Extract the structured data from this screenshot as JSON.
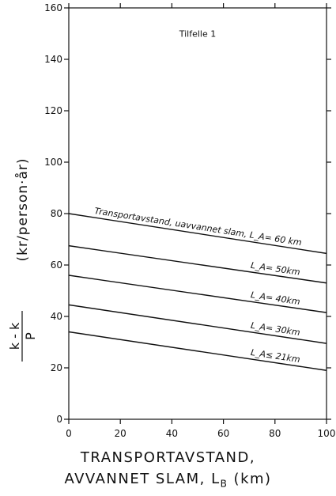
{
  "chart_data": {
    "type": "line",
    "title": "",
    "annotation_case": "Tilfelle 1",
    "x": [
      0,
      100
    ],
    "series": [
      {
        "name": "L_A = 60 km",
        "values": [
          80,
          64.5
        ],
        "label": "Transportavstand, uavvannet slam,  L_A= 60 km",
        "label_at": 50
      },
      {
        "name": "L_A = 50 km",
        "values": [
          67.5,
          53
        ],
        "label": "L_A= 50km",
        "label_at": 80
      },
      {
        "name": "L_A = 40 km",
        "values": [
          56,
          41.5
        ],
        "label": "L_A= 40km",
        "label_at": 80
      },
      {
        "name": "L_A = 30 km",
        "values": [
          44.5,
          29.5
        ],
        "label": "L_A= 30km",
        "label_at": 80
      },
      {
        "name": "L_A ≤ 21 km",
        "values": [
          34,
          19
        ],
        "label": "L_A≤ 21km",
        "label_at": 80
      }
    ],
    "xlim": [
      0,
      100
    ],
    "ylim": [
      0,
      160
    ],
    "xticks": [
      0,
      20,
      40,
      60,
      80,
      100
    ],
    "yticks": [
      0,
      20,
      40,
      60,
      80,
      100,
      120,
      140,
      160
    ],
    "xlabel_line1": "TRANSPORTAVSTAND,",
    "xlabel_line2": "AVVANNET SLAM, L",
    "xlabel_sub": "B",
    "xlabel_unit": " (km)",
    "ylabel_num": "k  - k",
    "ylabel_den": "P",
    "ylabel_unit": "(kr/person·år)",
    "grid": false
  }
}
